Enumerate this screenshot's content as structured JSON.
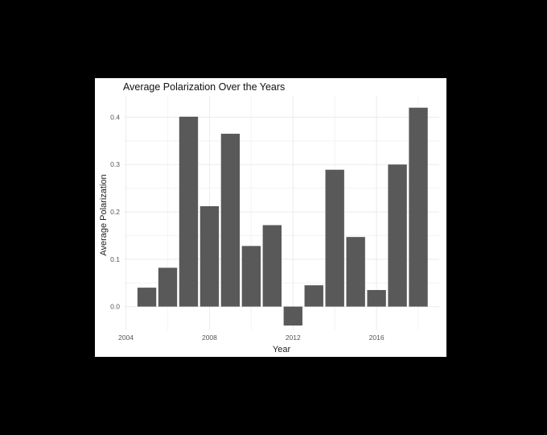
{
  "chart_data": {
    "type": "bar",
    "title": "Average Polarization Over the Years",
    "xlabel": "Year",
    "ylabel": "Average Polarization",
    "x": [
      2005,
      2006,
      2007,
      2008,
      2009,
      2010,
      2011,
      2012,
      2013,
      2014,
      2015,
      2016,
      2017,
      2018
    ],
    "values": [
      0.04,
      0.082,
      0.401,
      0.212,
      0.365,
      0.128,
      0.172,
      -0.04,
      0.045,
      0.289,
      0.147,
      0.035,
      0.3,
      0.42
    ],
    "xlim": [
      2003.9,
      2019.0
    ],
    "ylim": [
      -0.05,
      0.445
    ],
    "x_ticks": [
      "2004",
      "2008",
      "2012",
      "2016"
    ],
    "y_ticks": [
      "0.0",
      "0.1",
      "0.2",
      "0.3",
      "0.4"
    ],
    "grid": true,
    "legend": "none",
    "colors": {
      "bar": "#595959",
      "grid_major": "#ebebeb",
      "grid_minor": "#f5f5f5",
      "background": "#000000",
      "panel": "#ffffff"
    }
  }
}
